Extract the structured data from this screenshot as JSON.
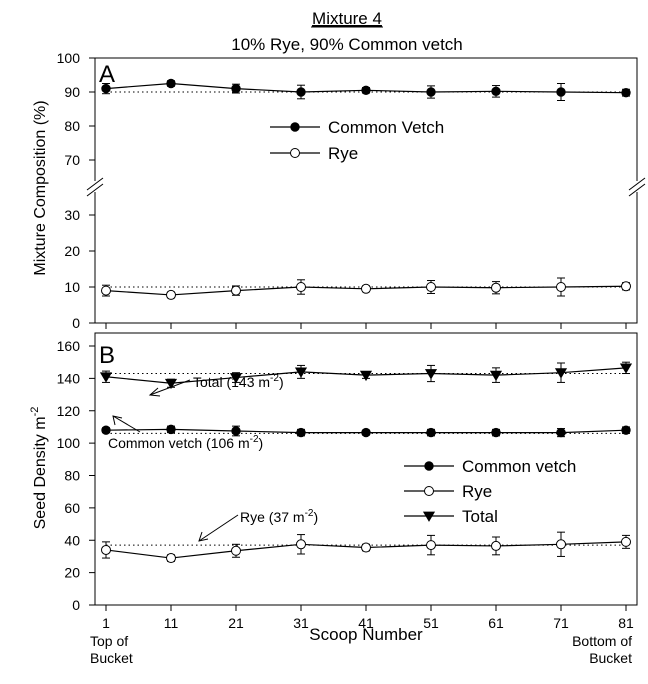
{
  "figure": {
    "title": "Mixture 4",
    "subtitle": "10% Rye, 90% Common vetch",
    "xlabel": "Scoop Number",
    "x_ticks": [
      "1",
      "11",
      "21",
      "31",
      "41",
      "51",
      "61",
      "71",
      "81"
    ],
    "x_note_left": [
      "Top of",
      "Bucket"
    ],
    "x_note_right": [
      "Bottom of",
      "Bucket"
    ]
  },
  "chart_data": [
    {
      "type": "line",
      "panel_letter": "A",
      "ylabel": "Mixture Composition (%)",
      "broken_axis": true,
      "y_segments": [
        [
          0,
          37
        ],
        [
          65,
          100
        ]
      ],
      "y_ticks_lower": [
        "0",
        "10",
        "20",
        "30"
      ],
      "y_ticks_upper": [
        "70",
        "80",
        "90",
        "100"
      ],
      "x": [
        1,
        11,
        21,
        31,
        41,
        51,
        61,
        71,
        81
      ],
      "legend_position": "center",
      "series": [
        {
          "name": "Common Vetch",
          "marker": "filled-circle",
          "values": [
            91.0,
            92.5,
            91.0,
            90.0,
            90.5,
            90.0,
            90.2,
            90.0,
            89.8
          ],
          "errors": [
            1.5,
            0.8,
            1.3,
            2.0,
            0.8,
            1.8,
            1.7,
            2.5,
            1.0
          ]
        },
        {
          "name": "Rye",
          "marker": "open-circle",
          "values": [
            9.0,
            7.8,
            9.0,
            10.0,
            9.5,
            10.0,
            9.8,
            10.0,
            10.2
          ],
          "errors": [
            1.5,
            0.8,
            1.3,
            2.0,
            0.8,
            1.8,
            1.7,
            2.5,
            1.0
          ]
        }
      ],
      "reference_lines": [
        {
          "y": 90,
          "style": "dotted"
        },
        {
          "y": 10,
          "style": "dotted"
        }
      ]
    },
    {
      "type": "line",
      "panel_letter": "B",
      "ylabel": "Seed Density m",
      "ylabel_superscript": "-2",
      "ylim": [
        0,
        165
      ],
      "y_ticks": [
        "0",
        "20",
        "40",
        "60",
        "80",
        "100",
        "120",
        "140",
        "160"
      ],
      "x": [
        1,
        11,
        21,
        31,
        41,
        51,
        61,
        71,
        81
      ],
      "legend_position": "right",
      "series": [
        {
          "name": "Common vetch",
          "marker": "filled-circle",
          "values": [
            108,
            108.5,
            107.5,
            106.5,
            106.5,
            106.5,
            106.5,
            106.5,
            108
          ],
          "errors": [
            1.5,
            2.0,
            3.0,
            2.0,
            1.5,
            2.0,
            2.0,
            2.5,
            2.0
          ]
        },
        {
          "name": "Rye",
          "marker": "open-circle",
          "values": [
            34,
            29,
            33.5,
            37.5,
            35.5,
            37,
            36.5,
            37.5,
            39
          ],
          "errors": [
            5.0,
            2.0,
            4.0,
            6.0,
            2.0,
            6.0,
            5.5,
            7.5,
            4.0
          ]
        },
        {
          "name": "Total",
          "marker": "filled-triangle-down",
          "values": [
            141,
            137,
            140.5,
            144,
            142,
            143,
            142,
            143.5,
            146.5
          ],
          "errors": [
            3.5,
            2.5,
            3.0,
            4.0,
            2.0,
            5.0,
            4.5,
            6.0,
            3.5
          ]
        }
      ],
      "reference_lines": [
        {
          "y": 143,
          "style": "dotted",
          "label": "Total (143 m",
          "label_sup": "-2",
          "label_end": ")"
        },
        {
          "y": 106,
          "style": "dotted",
          "label": "Common vetch (106 m",
          "label_sup": "-2",
          "label_end": ")"
        },
        {
          "y": 37,
          "style": "dotted",
          "label": "Rye (37 m",
          "label_sup": "-2",
          "label_end": ")"
        }
      ]
    }
  ]
}
